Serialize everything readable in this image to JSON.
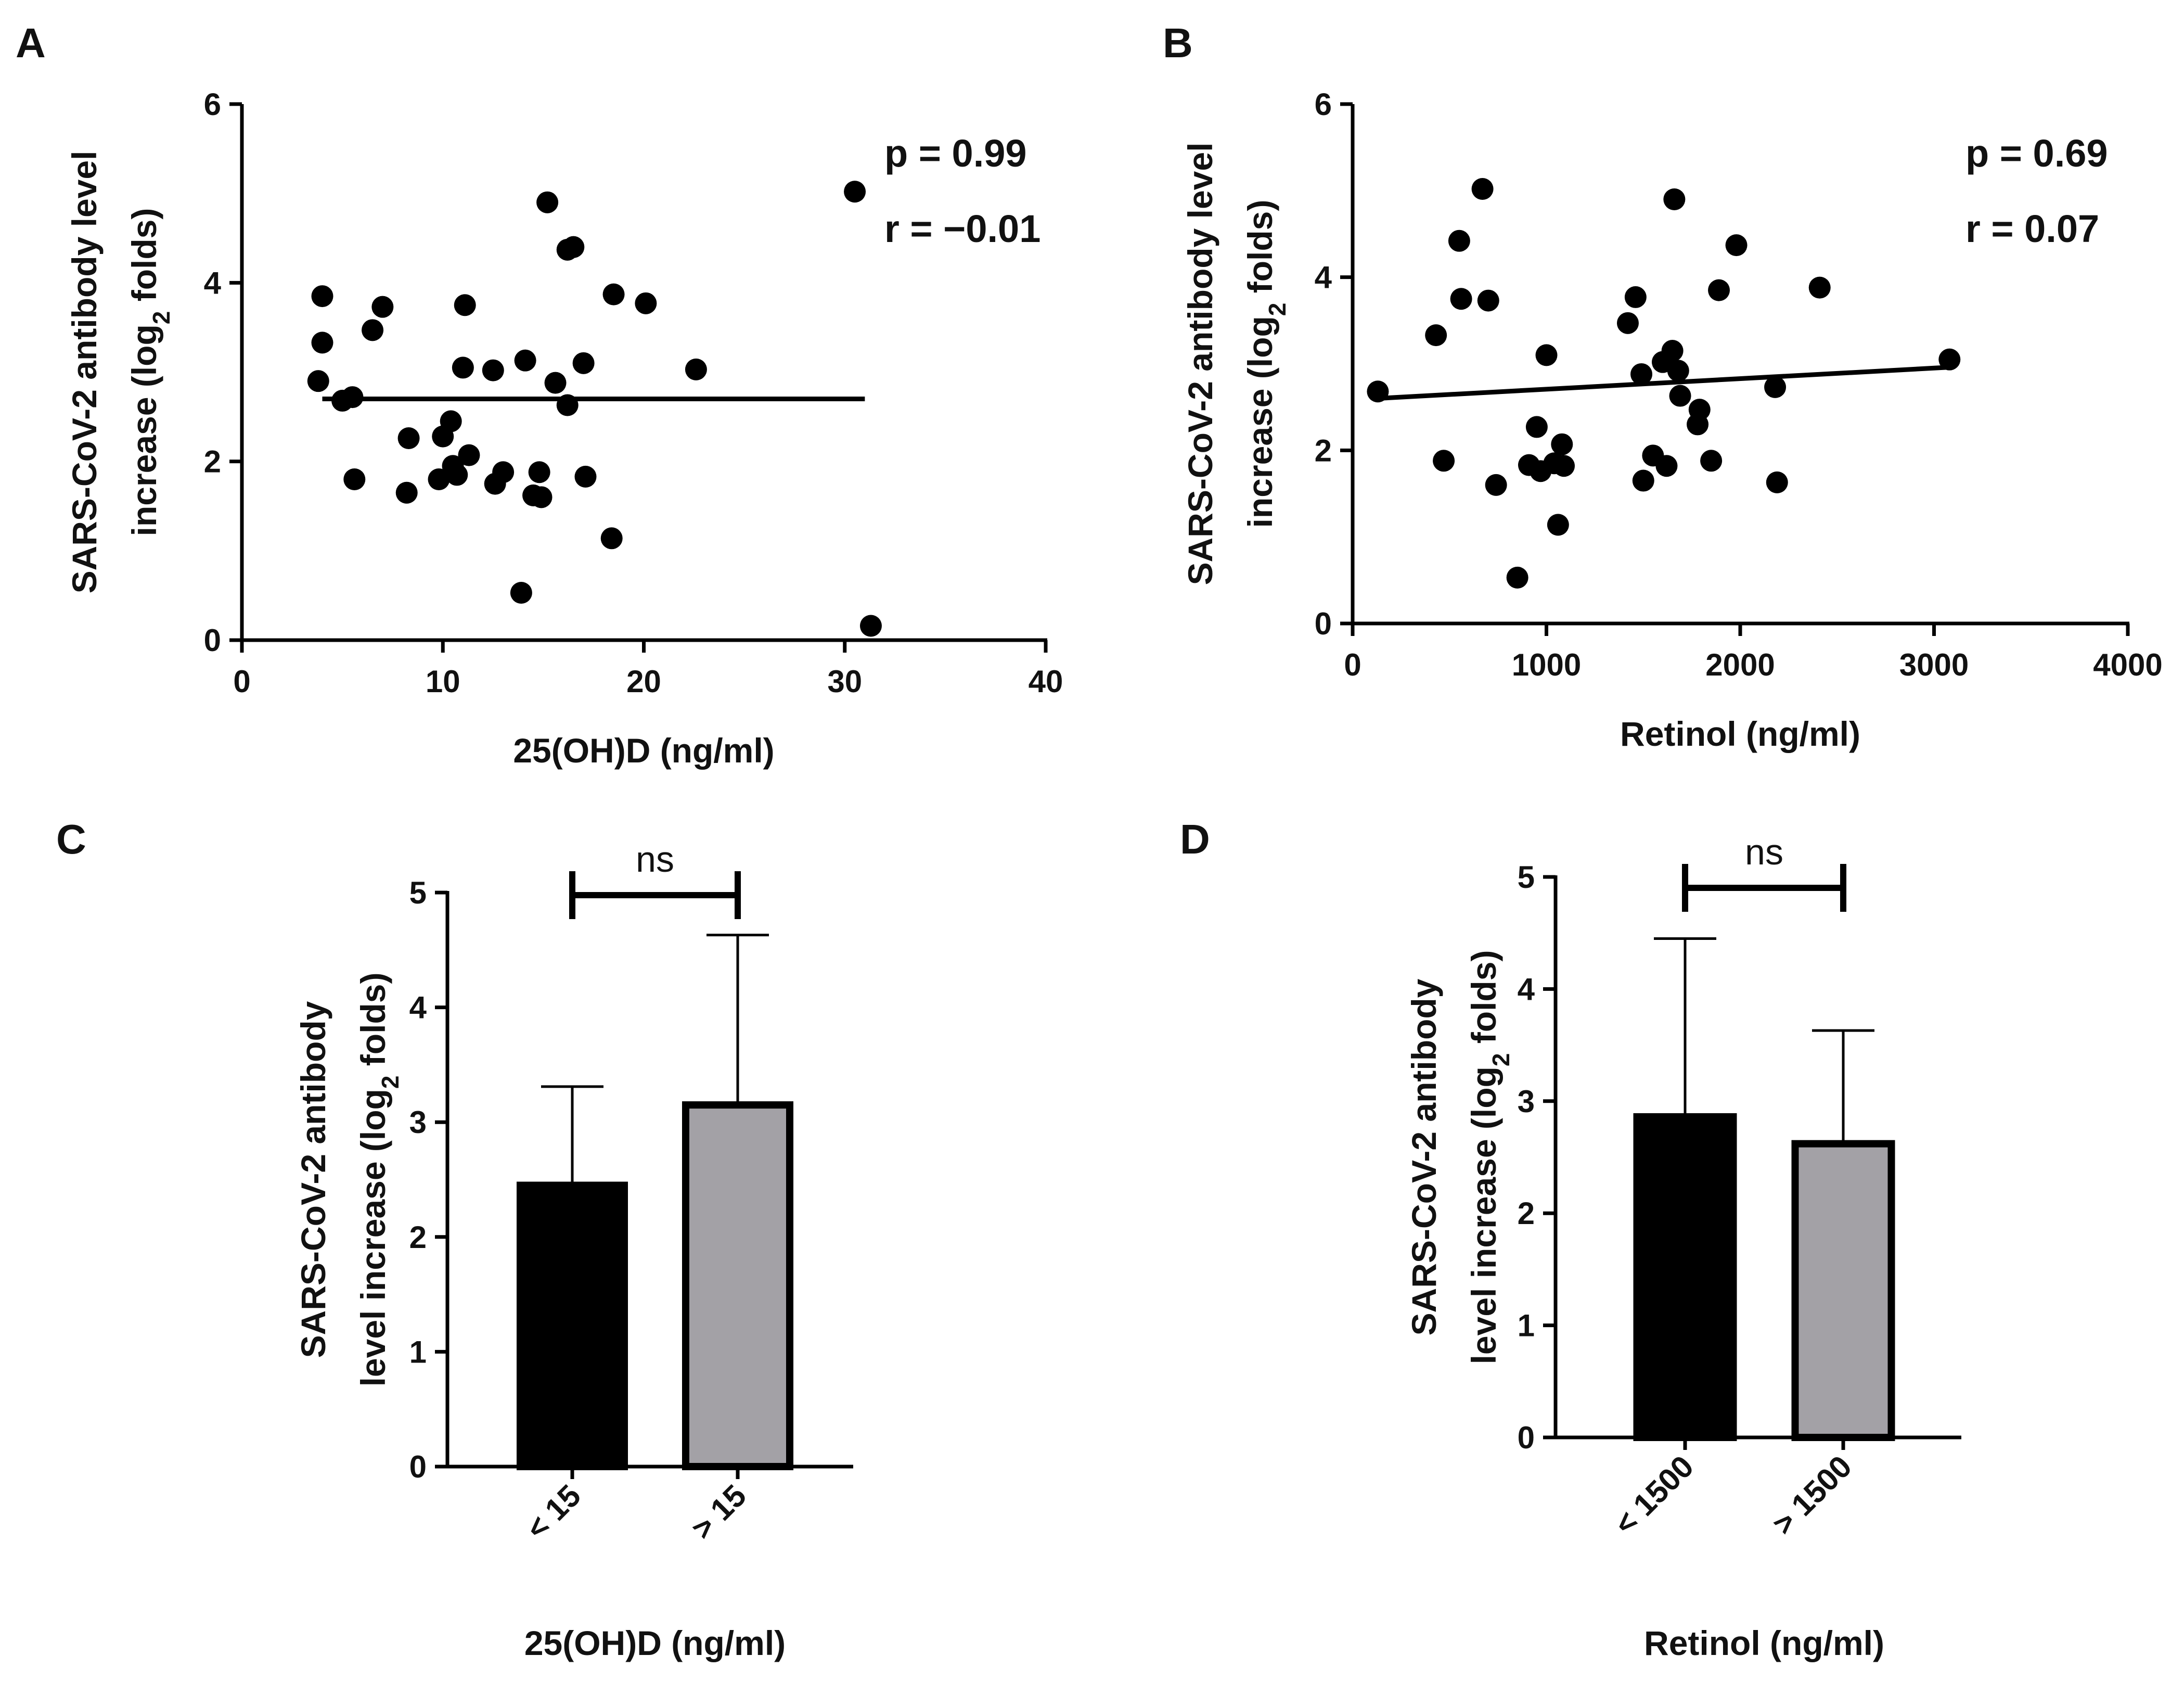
{
  "chart_data": [
    {
      "panel": "A",
      "type": "scatter",
      "xlabel": "25(OH)D (ng/ml)",
      "ylabel_line1": "SARS-CoV-2 antibody level",
      "ylabel_line2_pre": "increase (log",
      "ylabel_sub": "2",
      "ylabel_line2_post": " folds)",
      "xlim": [
        0,
        40
      ],
      "ylim": [
        0,
        6
      ],
      "xticks": [
        0,
        10,
        20,
        30,
        40
      ],
      "yticks": [
        0,
        2,
        4,
        6
      ],
      "stats": [
        "p = 0.99",
        "r = −0.01"
      ],
      "fit": {
        "x": [
          4,
          31
        ],
        "y": [
          2.7,
          2.7
        ]
      },
      "points": [
        [
          4,
          3.85
        ],
        [
          4,
          3.33
        ],
        [
          3.8,
          2.9
        ],
        [
          5,
          2.68
        ],
        [
          5.5,
          2.72
        ],
        [
          5.6,
          1.8
        ],
        [
          6.5,
          3.47
        ],
        [
          7,
          3.73
        ],
        [
          8.2,
          1.65
        ],
        [
          8.3,
          2.26
        ],
        [
          9.8,
          1.8
        ],
        [
          10,
          2.28
        ],
        [
          10.4,
          2.45
        ],
        [
          10.5,
          1.95
        ],
        [
          10.7,
          1.85
        ],
        [
          11,
          3.05
        ],
        [
          11.1,
          3.75
        ],
        [
          11.3,
          2.07
        ],
        [
          12.5,
          3.02
        ],
        [
          12.6,
          1.75
        ],
        [
          13,
          1.88
        ],
        [
          13.9,
          0.53
        ],
        [
          14.1,
          3.13
        ],
        [
          14.5,
          1.62
        ],
        [
          14.8,
          1.88
        ],
        [
          14.9,
          1.6
        ],
        [
          15.2,
          4.9
        ],
        [
          15.6,
          2.88
        ],
        [
          16.2,
          2.63
        ],
        [
          16.2,
          4.37
        ],
        [
          16.5,
          4.4
        ],
        [
          17,
          3.1
        ],
        [
          17.1,
          1.83
        ],
        [
          18.5,
          3.87
        ],
        [
          18.4,
          1.14
        ],
        [
          20.1,
          3.77
        ],
        [
          22.6,
          3.03
        ],
        [
          30.5,
          5.02
        ],
        [
          31.3,
          0.16
        ]
      ]
    },
    {
      "panel": "B",
      "type": "scatter",
      "xlabel": "Retinol (ng/ml)",
      "ylabel_line1": "SARS-CoV-2 antibody level",
      "ylabel_line2_pre": "increase (log",
      "ylabel_sub": "2",
      "ylabel_line2_post": " folds)",
      "xlim": [
        0,
        4000
      ],
      "ylim": [
        0,
        6
      ],
      "xticks": [
        0,
        1000,
        2000,
        3000,
        4000
      ],
      "yticks": [
        0,
        2,
        4,
        6
      ],
      "stats": [
        "p = 0.69",
        "r =  0.07"
      ],
      "fit": {
        "x": [
          130,
          3080
        ],
        "y": [
          2.6,
          2.96
        ]
      },
      "points": [
        [
          130,
          2.68
        ],
        [
          430,
          3.33
        ],
        [
          470,
          1.88
        ],
        [
          550,
          4.42
        ],
        [
          560,
          3.75
        ],
        [
          670,
          5.02
        ],
        [
          700,
          3.73
        ],
        [
          740,
          1.6
        ],
        [
          850,
          0.53
        ],
        [
          910,
          1.83
        ],
        [
          950,
          2.27
        ],
        [
          970,
          1.76
        ],
        [
          1000,
          3.1
        ],
        [
          1040,
          1.85
        ],
        [
          1060,
          1.14
        ],
        [
          1080,
          2.07
        ],
        [
          1090,
          1.82
        ],
        [
          1420,
          3.47
        ],
        [
          1460,
          3.77
        ],
        [
          1490,
          2.88
        ],
        [
          1500,
          1.65
        ],
        [
          1550,
          1.94
        ],
        [
          1600,
          3.02
        ],
        [
          1620,
          1.82
        ],
        [
          1650,
          3.15
        ],
        [
          1660,
          4.9
        ],
        [
          1680,
          2.92
        ],
        [
          1690,
          2.63
        ],
        [
          1780,
          2.3
        ],
        [
          1790,
          2.47
        ],
        [
          1850,
          1.88
        ],
        [
          1890,
          3.85
        ],
        [
          1980,
          4.37
        ],
        [
          2180,
          2.73
        ],
        [
          2190,
          1.63
        ],
        [
          2410,
          3.88
        ],
        [
          3080,
          3.05
        ]
      ]
    },
    {
      "panel": "C",
      "type": "bar",
      "xlabel": "25(OH)D (ng/ml)",
      "ylabel_line1": "SARS-CoV-2 antibody",
      "ylabel_line2_pre": "level increase (log",
      "ylabel_sub": "2",
      "ylabel_line2_post": " folds)",
      "categories": [
        "< 15",
        "> 15"
      ],
      "values": [
        2.45,
        3.15
      ],
      "errors_upper": [
        3.31,
        4.63
      ],
      "colors": [
        "#000000",
        "#a3a1a6"
      ],
      "ylim": [
        0,
        5
      ],
      "yticks": [
        0,
        1,
        2,
        3,
        4,
        5
      ],
      "significance": "ns"
    },
    {
      "panel": "D",
      "type": "bar",
      "xlabel": "Retinol (ng/ml)",
      "ylabel_line1": "SARS-CoV-2 antibody",
      "ylabel_line2_pre": "level increase (log",
      "ylabel_sub": "2",
      "ylabel_line2_post": " folds)",
      "categories": [
        "< 1500",
        "> 1500"
      ],
      "values": [
        2.86,
        2.62
      ],
      "errors_upper": [
        4.45,
        3.63
      ],
      "colors": [
        "#000000",
        "#a3a1a6"
      ],
      "ylim": [
        0,
        5
      ],
      "yticks": [
        0,
        1,
        2,
        3,
        4,
        5
      ],
      "significance": "ns"
    }
  ]
}
